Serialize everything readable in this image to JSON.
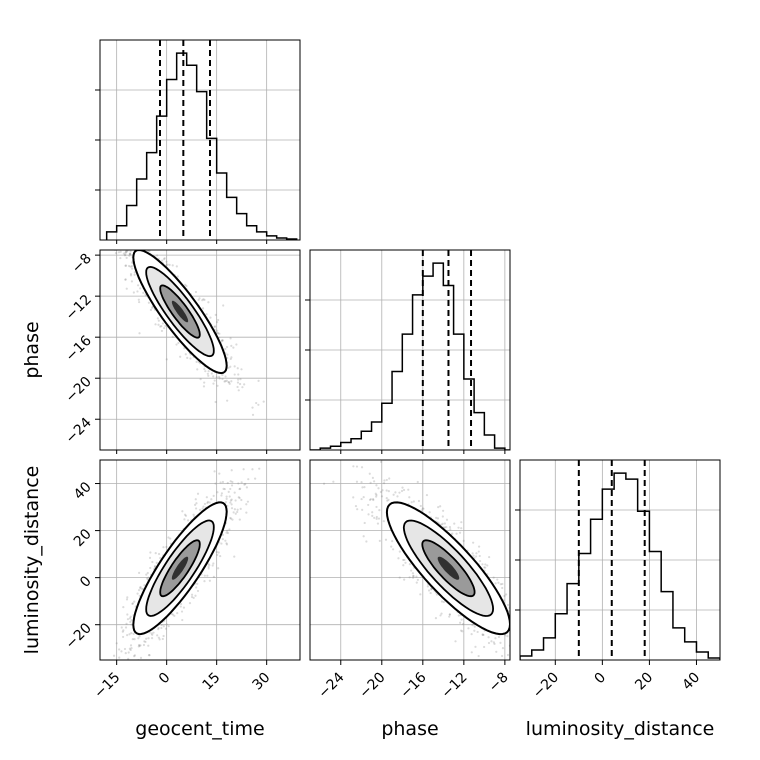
{
  "chart_data": {
    "type": "corner",
    "grid": true,
    "parameters": [
      "geocent_time",
      "phase",
      "luminosity_distance"
    ],
    "axes": {
      "geocent_time": {
        "label": "geocent_time",
        "range": [
          -20,
          40
        ],
        "ticks": [
          -15,
          0,
          15,
          30
        ],
        "tick_labels": [
          "−15",
          "0",
          "15",
          "30"
        ]
      },
      "phase": {
        "label": "phase",
        "range": [
          -27,
          -7.5
        ],
        "ticks": [
          -24,
          -20,
          -16,
          -12,
          -8
        ],
        "tick_labels": [
          "−24",
          "−20",
          "−16",
          "−12",
          "−8"
        ]
      },
      "luminosity_distance": {
        "label": "luminosity_distance",
        "range": [
          -35,
          50
        ],
        "ticks": [
          -20,
          0,
          20,
          40
        ],
        "tick_labels": [
          "−20",
          "0",
          "20",
          "40"
        ]
      }
    },
    "marginals": [
      {
        "parameter": "geocent_time",
        "bin_edges": [
          -18,
          -15,
          -12,
          -9,
          -6,
          -3,
          0,
          3,
          6,
          9,
          12,
          15,
          18,
          21,
          24,
          27,
          30,
          33,
          36,
          39
        ],
        "values": [
          0.04,
          0.07,
          0.17,
          0.3,
          0.43,
          0.61,
          0.79,
          0.92,
          0.86,
          0.73,
          0.5,
          0.33,
          0.21,
          0.13,
          0.07,
          0.04,
          0.02,
          0.01,
          0.005
        ],
        "quantiles": [
          -2,
          5,
          13
        ]
      },
      {
        "parameter": "phase",
        "bin_edges": [
          -27,
          -26,
          -25,
          -24,
          -23,
          -22,
          -21,
          -20,
          -19,
          -18,
          -17,
          -16,
          -15,
          -14,
          -13,
          -12,
          -11,
          -10,
          -9,
          -8,
          -7.5
        ],
        "values": [
          0.0,
          0.01,
          0.02,
          0.04,
          0.06,
          0.1,
          0.15,
          0.25,
          0.42,
          0.62,
          0.83,
          0.93,
          1.0,
          0.88,
          0.62,
          0.38,
          0.2,
          0.08,
          0.01,
          0.0
        ],
        "quantiles": [
          -16,
          -13.5,
          -11.3
        ]
      },
      {
        "parameter": "luminosity_distance",
        "bin_edges": [
          -35,
          -30,
          -25,
          -20,
          -15,
          -10,
          -5,
          0,
          5,
          10,
          15,
          20,
          25,
          30,
          35,
          40,
          45,
          50
        ],
        "values": [
          0.02,
          0.05,
          0.11,
          0.23,
          0.38,
          0.53,
          0.7,
          0.85,
          0.93,
          0.9,
          0.74,
          0.54,
          0.34,
          0.16,
          0.09,
          0.04,
          0.01
        ],
        "quantiles": [
          -10,
          4,
          18
        ]
      }
    ],
    "joint": [
      {
        "x": "geocent_time",
        "y": "phase",
        "center": [
          4,
          -13.5
        ],
        "std": [
          7,
          3
        ],
        "correlation": -0.88
      },
      {
        "x": "geocent_time",
        "y": "luminosity_distance",
        "center": [
          4,
          4
        ],
        "std": [
          7,
          14
        ],
        "correlation": 0.86
      },
      {
        "x": "phase",
        "y": "luminosity_distance",
        "center": [
          -13.5,
          4
        ],
        "std": [
          3,
          14
        ],
        "correlation": -0.85
      }
    ],
    "colors": {
      "line": "#000000",
      "scatter": "#7f7f7f",
      "grid": "#b0b0b0"
    }
  }
}
